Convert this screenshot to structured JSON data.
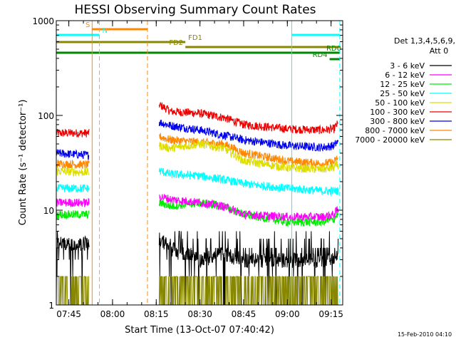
{
  "chart_data": {
    "type": "line",
    "title": "HESSI Observing Summary Count Rates",
    "xlabel": "Start Time (13-Oct-07 07:40:42)",
    "ylabel": "Count Rate (s⁻¹ detector⁻¹)",
    "y_scale": "log",
    "ylim": [
      1,
      1000
    ],
    "xlim": [
      "07:40:42",
      "09:19:00"
    ],
    "x_tick_labels": [
      "07:45",
      "08:00",
      "08:15",
      "08:30",
      "08:45",
      "09:00",
      "09:15"
    ],
    "y_tick_labels": [
      "1",
      "10",
      "100",
      "1000"
    ],
    "legend": {
      "header_line1": "Det 1,3,4,5,6,9,",
      "header_line2": "Att 0",
      "placement": "right"
    },
    "series": [
      {
        "name": "3 - 6 keV",
        "color": "#000000"
      },
      {
        "name": "6 - 12 keV",
        "color": "#ff00ff"
      },
      {
        "name": "12 - 25 keV",
        "color": "#00ee00"
      },
      {
        "name": "25 - 50 keV",
        "color": "#00ffff"
      },
      {
        "name": "50 - 100 keV",
        "color": "#dddd00"
      },
      {
        "name": "100 - 300 keV",
        "color": "#ee0000"
      },
      {
        "name": "300 - 800 keV",
        "color": "#0000ee"
      },
      {
        "name": "800 - 7000 keV",
        "color": "#ff8800"
      },
      {
        "name": "7000 - 20000 keV",
        "color": "#888800"
      }
    ],
    "levels": {
      "x_segments": [
        [
          "07:40:42",
          "07:52:00"
        ],
        [
          "08:16:00",
          "09:17:30"
        ]
      ],
      "waypoints": [
        {
          "t": [
            "07:40",
            "07:52",
            "08:16",
            "08:20",
            "08:30",
            "08:38",
            "08:45",
            "09:00",
            "09:12",
            "09:16",
            "09:17"
          ],
          "series": "100 - 300 keV",
          "y": [
            65,
            65,
            130,
            110,
            105,
            95,
            80,
            72,
            70,
            72,
            80
          ]
        },
        {
          "t": [
            "07:40",
            "07:52",
            "08:16",
            "08:20",
            "08:30",
            "08:38",
            "08:45",
            "09:00",
            "09:12",
            "09:16",
            "09:17"
          ],
          "series": "300 - 800 keV",
          "y": [
            40,
            38,
            85,
            78,
            70,
            62,
            55,
            48,
            46,
            48,
            52
          ]
        },
        {
          "t": [
            "07:40",
            "07:52",
            "08:16",
            "08:20",
            "08:30",
            "08:38",
            "08:45",
            "09:00",
            "09:12",
            "09:16",
            "09:17"
          ],
          "series": "800 - 7000 keV",
          "y": [
            31,
            30,
            60,
            55,
            52,
            50,
            40,
            33,
            31,
            32,
            35
          ]
        },
        {
          "t": [
            "07:40",
            "07:52",
            "08:16",
            "08:20",
            "08:30",
            "08:38",
            "08:45",
            "09:00",
            "09:12",
            "09:16",
            "09:17"
          ],
          "series": "50 - 100 keV",
          "y": [
            26,
            25,
            48,
            45,
            50,
            45,
            33,
            28,
            27,
            28,
            30
          ]
        },
        {
          "t": [
            "07:40",
            "07:52",
            "08:16",
            "08:20",
            "08:30",
            "08:38",
            "08:45",
            "09:00",
            "09:12",
            "09:16",
            "09:17"
          ],
          "series": "25 - 50 keV",
          "y": [
            17,
            17,
            26,
            24,
            23,
            21,
            19,
            17,
            16,
            16,
            16
          ]
        },
        {
          "t": [
            "07:40",
            "07:52",
            "08:16",
            "08:20",
            "08:30",
            "08:38",
            "08:45",
            "09:00",
            "09:12",
            "09:16",
            "09:17"
          ],
          "series": "12 - 25 keV",
          "y": [
            9,
            9,
            12,
            11,
            12,
            11,
            9,
            7.5,
            7.5,
            8,
            9
          ]
        },
        {
          "t": [
            "07:40",
            "07:52",
            "08:16",
            "08:20",
            "08:30",
            "08:38",
            "08:45",
            "09:00",
            "09:12",
            "09:16",
            "09:17"
          ],
          "series": "6 - 12 keV",
          "y": [
            12,
            12,
            14,
            13,
            12,
            11,
            9,
            8.5,
            8.5,
            9,
            10
          ]
        },
        {
          "t": [
            "07:40",
            "07:52",
            "08:16",
            "08:20",
            "08:30",
            "08:38",
            "08:45",
            "09:00",
            "09:12",
            "09:16",
            "09:17"
          ],
          "series": "3 - 6 keV",
          "y": [
            4.5,
            4.5,
            5,
            4,
            3,
            3.5,
            3,
            3,
            3,
            3,
            3.2
          ]
        },
        {
          "t": [
            "07:40",
            "07:52",
            "08:16",
            "08:20",
            "08:30",
            "08:38",
            "08:45",
            "09:00",
            "09:12",
            "09:16",
            "09:17"
          ],
          "series": "7000 - 20000 keV",
          "y": [
            1.5,
            1.5,
            1.5,
            1.5,
            1.5,
            1.5,
            1.5,
            1.5,
            1.5,
            1.5,
            1.5
          ]
        }
      ]
    },
    "vertical_markers": [
      {
        "t": "07:40:42",
        "color": "#00ffff",
        "style": "solid"
      },
      {
        "t": "07:53:00",
        "color": "#ff8800",
        "style": "solid"
      },
      {
        "t": "07:55:30",
        "color": "#00ffff",
        "style": "dashed"
      },
      {
        "t": "08:12:00",
        "color": "#ff8800",
        "style": "dashed"
      },
      {
        "t": "09:01:30",
        "color": "#00ffff",
        "style": "solid"
      },
      {
        "t": "09:18:00",
        "color": "#00ffff",
        "style": "dashed"
      }
    ],
    "state_bars": [
      {
        "label": "S",
        "color": "#ff8800",
        "t0": "07:53:00",
        "t1": "08:12:00",
        "label_side": "left",
        "row": 0
      },
      {
        "label": "N",
        "color": "#00ffff",
        "t0": "07:40:42",
        "t1": "07:55:30",
        "label_side": "right",
        "row": 1
      },
      {
        "label": "N",
        "color": "#00ffff",
        "t0": "09:01:30",
        "t1": "09:18:00",
        "label_side": "none",
        "row": 1
      },
      {
        "label": "FD1",
        "color": "#888800",
        "t0": "07:40:42",
        "t1": "08:25:00",
        "label_side": "right",
        "row": 2
      },
      {
        "label": "FD2",
        "color": "#888800",
        "t0": "08:25:00",
        "t1": "09:18:00",
        "label_side": "left",
        "row": 3
      },
      {
        "label": "RD0",
        "color": "#008800",
        "t0": "07:40:42",
        "t1": "09:18:00",
        "label_side": "right-end",
        "row": 4
      },
      {
        "label": "RD4",
        "color": "#008800",
        "t0": "09:14:30",
        "t1": "09:18:00",
        "label_side": "left",
        "row": 5
      }
    ]
  },
  "footer": {
    "timestamp": "15-Feb-2010 04:10"
  }
}
